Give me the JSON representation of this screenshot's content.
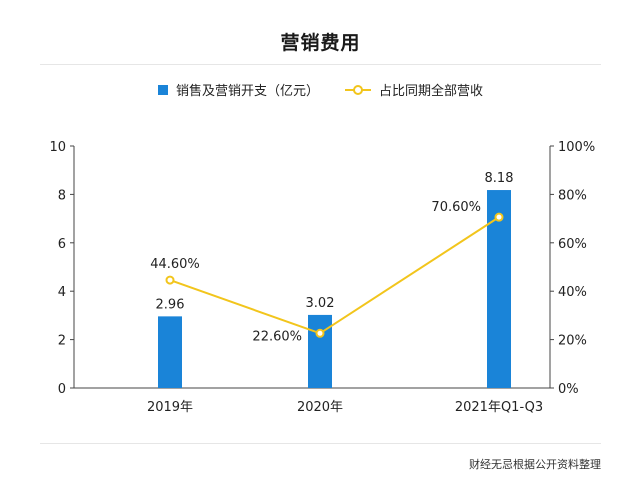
{
  "page": {
    "title": "营销费用",
    "source": "财经无忌根据公开资料整理"
  },
  "colors": {
    "bar": "#1a84d8",
    "line": "#f2c51c",
    "axis": "#444444",
    "separator": "#e6e6e6"
  },
  "chart_data": {
    "type": "bar",
    "title": "营销费用",
    "categories": [
      "2019年",
      "2020年",
      "2021年Q1-Q3"
    ],
    "series": [
      {
        "name": "销售及营销开支（亿元）",
        "type": "bar",
        "axis": "left",
        "values": [
          2.96,
          3.02,
          8.18
        ],
        "labels": [
          "2.96",
          "3.02",
          "8.18"
        ]
      },
      {
        "name": "占比同期全部营收",
        "type": "line",
        "axis": "right",
        "values": [
          44.6,
          22.6,
          70.6
        ],
        "labels": [
          "44.60%",
          "22.60%",
          "70.60%"
        ]
      }
    ],
    "ylim": [
      0,
      10
    ],
    "y_ticks": [
      "0",
      "2",
      "4",
      "6",
      "8",
      "10"
    ],
    "y2lim": [
      0,
      100
    ],
    "y2_ticks": [
      "0%",
      "20%",
      "40%",
      "60%",
      "80%",
      "100%"
    ],
    "legend": "top-center",
    "grid": false
  }
}
